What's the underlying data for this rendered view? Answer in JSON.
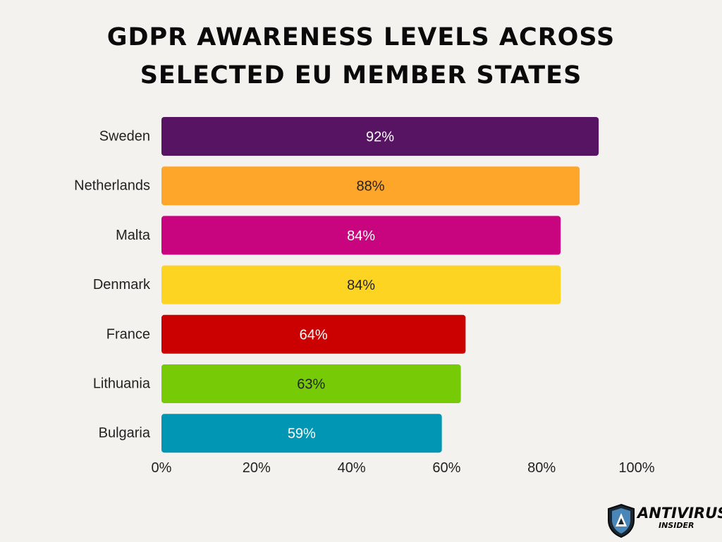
{
  "title_lines": [
    "GDPR AWARENESS LEVELS ACROSS",
    "SELECTED EU MEMBER STATES"
  ],
  "logo": {
    "main": "ANTIVIRUS",
    "sub": "INSIDER",
    "icon": "shield-icon"
  },
  "chart_data": {
    "type": "bar",
    "orientation": "horizontal",
    "title": "GDPR AWARENESS LEVELS ACROSS SELECTED EU MEMBER STATES",
    "categories": [
      "Sweden",
      "Netherlands",
      "Malta",
      "Denmark",
      "France",
      "Lithuania",
      "Bulgaria"
    ],
    "values": [
      92,
      88,
      84,
      84,
      64,
      63,
      59
    ],
    "value_labels": [
      "92%",
      "88%",
      "84%",
      "84%",
      "64%",
      "63%",
      "59%"
    ],
    "colors": [
      "#561462",
      "#fda629",
      "#c8047f",
      "#fed422",
      "#cb0000",
      "#76cb06",
      "#0096b4"
    ],
    "value_label_colors": [
      "#ffffff",
      "#222222",
      "#ffffff",
      "#222222",
      "#ffffff",
      "#222222",
      "#ffffff"
    ],
    "xticks": [
      "0%",
      "20%",
      "40%",
      "60%",
      "80%",
      "100%"
    ],
    "xlim": [
      0,
      100
    ],
    "xlabel": "",
    "ylabel": "",
    "grid": false,
    "legend": "none"
  }
}
